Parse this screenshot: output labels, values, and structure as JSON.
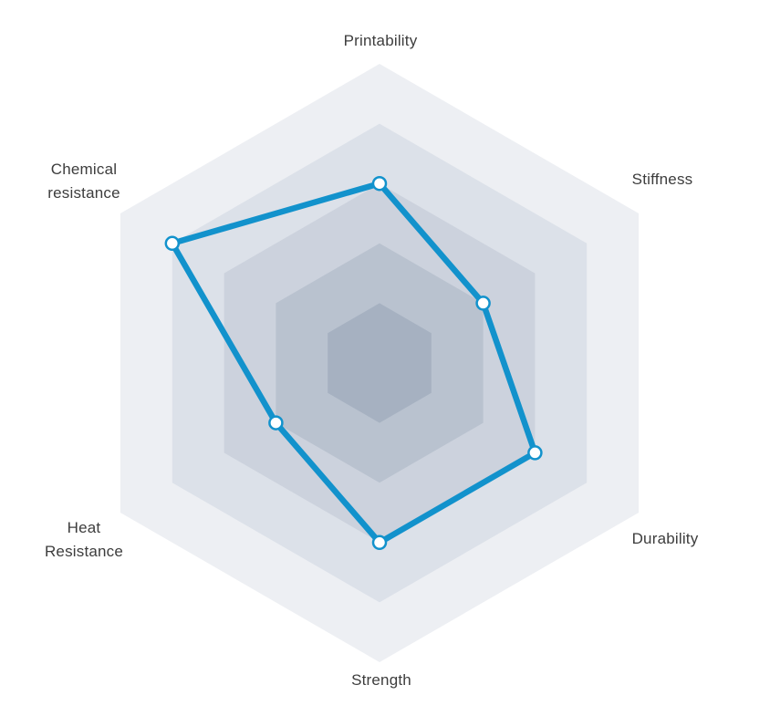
{
  "page": {
    "background_color": "#ffffff",
    "text_color": "#3d3d3d"
  },
  "chart_data": {
    "type": "radar",
    "title": "",
    "categories": [
      "Printability",
      "Stiffness",
      "Durability",
      "Strength",
      "Heat Resistance",
      "Chemical resistance"
    ],
    "values": [
      3,
      2,
      3,
      3,
      2,
      4
    ],
    "scale": {
      "min": 0,
      "max": 5,
      "rings": 5
    },
    "grid_shape": "hexagon",
    "grid_style": "filled-concentric",
    "ring_colors_outer_to_inner": [
      "#edeff3",
      "#dce1e9",
      "#ccd2dd",
      "#b9c2cf",
      "#a6b1c1"
    ],
    "series": [
      {
        "name": "material-properties",
        "values": [
          3,
          2,
          3,
          3,
          2,
          4
        ],
        "line_color": "#1292cc",
        "line_width": 6.5,
        "marker": {
          "shape": "circle",
          "fill": "#ffffff",
          "stroke": "#1292cc",
          "radius": 7,
          "stroke_width": 2.5
        }
      }
    ],
    "legend": "none",
    "axis_tick_labels": "none"
  },
  "axis_labels": [
    {
      "id": "printability",
      "text": "Printability"
    },
    {
      "id": "stiffness",
      "text": "Stiffness"
    },
    {
      "id": "durability",
      "text": "Durability"
    },
    {
      "id": "strength",
      "text": "Strength"
    },
    {
      "id": "heat-resistance",
      "text": "Heat\nResistance"
    },
    {
      "id": "chemical-resistance",
      "text": "Chemical\nresistance"
    }
  ]
}
